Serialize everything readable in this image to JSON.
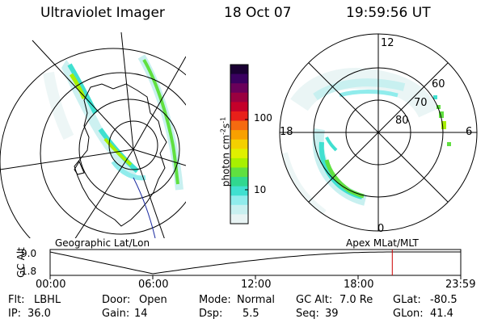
{
  "header": {
    "instrument": "Ultraviolet Imager",
    "date": "18 Oct 07",
    "time": "19:59:56 UT"
  },
  "left_panel": {
    "caption": "Geographic Lat/Lon"
  },
  "right_panel": {
    "caption": "Apex MLat/MLT",
    "mlt_labels": {
      "top": "12",
      "left": "18",
      "right": "6",
      "bottom": "0"
    },
    "lat_labels": [
      "60",
      "70",
      "80"
    ]
  },
  "colorbar": {
    "unit_label": "photon cm",
    "unit_sup1": "-2",
    "unit_mid": "s",
    "unit_sup2": "-1",
    "tick_labels": [
      "100",
      "10"
    ],
    "colors_top_to_bottom": [
      "#1a0033",
      "#3a0060",
      "#6a005a",
      "#9a0040",
      "#c4002a",
      "#e8201a",
      "#f56a10",
      "#f8a000",
      "#f4d000",
      "#e0f000",
      "#a8f000",
      "#60e040",
      "#30d890",
      "#40e0d0",
      "#90ecec",
      "#c8f0f0",
      "#e8f4f4"
    ]
  },
  "timeline": {
    "axis_label": "GC Alt",
    "y_ticks": [
      "9.0",
      "1.8"
    ],
    "x_ticks": [
      "00:00",
      "06:00",
      "12:00",
      "18:00",
      "23:59"
    ],
    "marker_hour": 20.0,
    "marker_color": "#cc0000"
  },
  "info": {
    "flt_label": "Flt:",
    "flt_value": "LBHL",
    "ip_label": "IP:",
    "ip_value": "36.0",
    "door_label": "Door:",
    "door_value": "Open",
    "gain_label": "Gain:",
    "gain_value": "14",
    "mode_label": "Mode:",
    "mode_value": "Normal",
    "dsp_label": "Dsp:",
    "dsp_value": "5.5",
    "gcalt_label": "GC Alt:",
    "gcalt_value": "7.0 Re",
    "seq_label": "Seq:",
    "seq_value": "39",
    "glat_label": "GLat:",
    "glat_value": "-80.5",
    "glon_label": "GLon:",
    "glon_value": "41.4"
  }
}
